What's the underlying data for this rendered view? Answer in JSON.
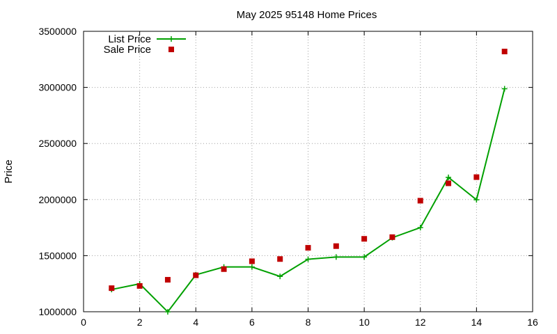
{
  "chart_data": {
    "type": "line",
    "title": "May 2025 95148 Home Prices",
    "xlabel": "",
    "ylabel": "Price",
    "xlim": [
      0,
      16
    ],
    "ylim": [
      1000000,
      3500000
    ],
    "x_ticks": [
      "0",
      "2",
      "4",
      "6",
      "8",
      "10",
      "12",
      "14",
      "16"
    ],
    "y_ticks": [
      "1000000",
      "1500000",
      "2000000",
      "2500000",
      "3000000",
      "3500000"
    ],
    "grid": true,
    "legend_position": "top-left",
    "series": [
      {
        "name": "List Price",
        "style": "lines+points",
        "marker": "plus",
        "color": "#00a000",
        "x": [
          1,
          2,
          3,
          4,
          5,
          6,
          7,
          8,
          9,
          10,
          11,
          12,
          13,
          14,
          15
        ],
        "y": [
          1198000,
          1249000,
          999000,
          1329000,
          1399000,
          1399000,
          1315000,
          1468000,
          1488000,
          1488000,
          1660000,
          1750000,
          2198000,
          1998000,
          2988000
        ]
      },
      {
        "name": "Sale Price",
        "style": "points",
        "marker": "square",
        "color": "#c00000",
        "x": [
          1,
          2,
          3,
          4,
          5,
          6,
          7,
          8,
          9,
          10,
          11,
          12,
          13,
          14,
          15
        ],
        "y": [
          1210000,
          1230000,
          1285000,
          1325000,
          1380000,
          1450000,
          1470000,
          1570000,
          1585000,
          1650000,
          1665000,
          1990000,
          2145000,
          2200000,
          3320000
        ]
      }
    ]
  }
}
